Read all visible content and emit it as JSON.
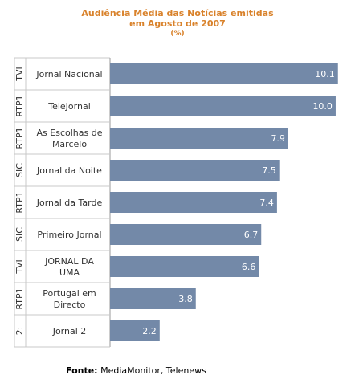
{
  "chart_data": {
    "type": "bar",
    "orientation": "horizontal",
    "title_line1": "Audiência Média das Notícias emitidas",
    "title_line2": "em Agosto de 2007",
    "unit": "(%)",
    "xlim": [
      0,
      10.5
    ],
    "grid": false,
    "bar_color": "#7389a8",
    "value_label_color": "#ffffff",
    "rows": [
      {
        "channel": "TVI",
        "program": [
          "Jornal Nacional"
        ],
        "value": 10.1,
        "label": "10.1"
      },
      {
        "channel": "RTP1",
        "program": [
          "TeleJornal"
        ],
        "value": 10.0,
        "label": "10.0"
      },
      {
        "channel": "RTP1",
        "program": [
          "As Escolhas de",
          "Marcelo"
        ],
        "value": 7.9,
        "label": "7.9"
      },
      {
        "channel": "SIC",
        "program": [
          "Jornal da Noite"
        ],
        "value": 7.5,
        "label": "7.5"
      },
      {
        "channel": "RTP1",
        "program": [
          "Jornal da Tarde"
        ],
        "value": 7.4,
        "label": "7.4"
      },
      {
        "channel": "SIC",
        "program": [
          "Primeiro Jornal"
        ],
        "value": 6.7,
        "label": "6.7"
      },
      {
        "channel": "TVI",
        "program": [
          "JORNAL DA",
          "UMA"
        ],
        "value": 6.6,
        "label": "6.6"
      },
      {
        "channel": "RTP1",
        "program": [
          "Portugal em",
          "Directo"
        ],
        "value": 3.8,
        "label": "3.8"
      },
      {
        "channel": "2:",
        "program": [
          "Jornal 2"
        ],
        "value": 2.2,
        "label": "2.2"
      }
    ]
  },
  "footer": {
    "source_label": "Fonte:",
    "source_text": "MediaMonitor, Telenews"
  }
}
